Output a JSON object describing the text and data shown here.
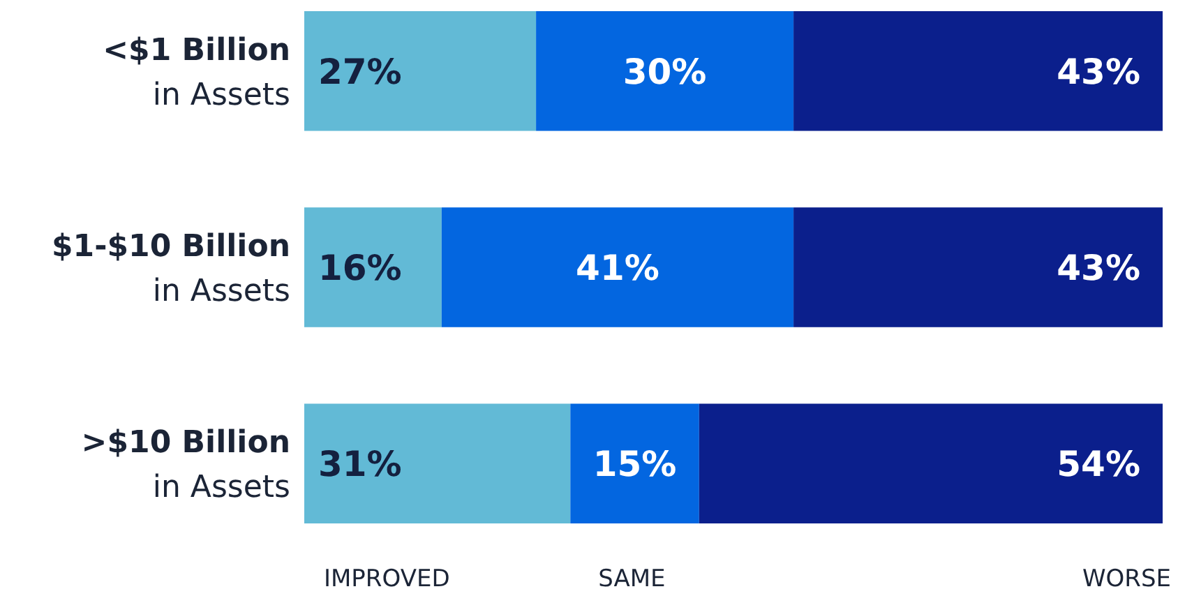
{
  "chart_data": {
    "type": "bar",
    "orientation": "horizontal",
    "stacked": true,
    "legend": "bottom",
    "categories": [
      "<$1 Billion\nin Assets",
      "$1-$10 Billion\nin Assets",
      ">$10 Billion\nin Assets"
    ],
    "series": [
      {
        "name": "IMPROVED",
        "color": "#62bad6",
        "values": [
          27,
          16,
          31
        ],
        "value_labels": [
          "27%",
          "16%",
          "31%"
        ]
      },
      {
        "name": "SAME",
        "color": "#0366e0",
        "values": [
          30,
          41,
          15
        ],
        "value_labels": [
          "30%",
          "41%",
          "15%"
        ]
      },
      {
        "name": "WORSE",
        "color": "#0b1f8c",
        "values": [
          43,
          43,
          54
        ],
        "value_labels": [
          "43%",
          "43%",
          "54%"
        ]
      }
    ]
  }
}
